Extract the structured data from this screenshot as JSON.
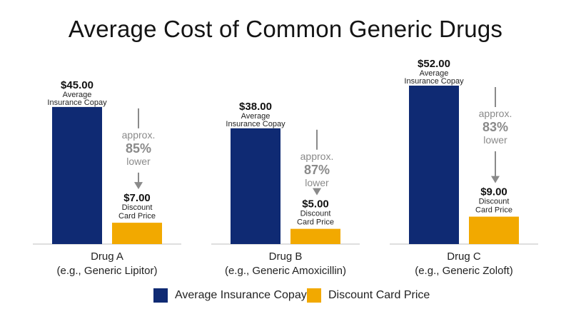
{
  "title": "Average Cost of Common Generic Drugs",
  "chart_data": {
    "type": "bar",
    "title": "Average Cost of Common Generic Drugs",
    "categories": [
      "Drug A",
      "Drug B",
      "Drug C"
    ],
    "category_subtitles": [
      "(e.g., Generic Lipitor)",
      "(e.g., Generic Amoxicillin)",
      "(e.g., Generic Zoloft)"
    ],
    "series": [
      {
        "name": "Average Insurance Copay",
        "values": [
          45,
          38,
          52
        ],
        "value_labels": [
          "$45.00",
          "$38.00",
          "$52.00"
        ],
        "bar_caption_line1": "Average",
        "bar_caption_line2": "Insurance Copay",
        "color": "#0f2a73"
      },
      {
        "name": "Discount Card Price",
        "values": [
          7,
          5,
          9
        ],
        "value_labels": [
          "$7.00",
          "$5.00",
          "$9.00"
        ],
        "bar_caption_line1": "Discount",
        "bar_caption_line2": "Card Price",
        "color": "#f2a900"
      }
    ],
    "annotations": [
      {
        "line1": "approx.",
        "percent": "85%",
        "line3": "lower"
      },
      {
        "line1": "approx.",
        "percent": "87%",
        "line3": "lower"
      },
      {
        "line1": "approx.",
        "percent": "83%",
        "line3": "lower"
      }
    ],
    "annotation_color": "#8a8a8a",
    "ylim": [
      0,
      52
    ],
    "grid": false,
    "legend_position": "bottom-center",
    "xlabel": "",
    "ylabel": ""
  },
  "legend": [
    {
      "label": "Average Insurance Copay",
      "color": "#0f2a73"
    },
    {
      "label": "Discount Card Price",
      "color": "#f2a900"
    }
  ]
}
